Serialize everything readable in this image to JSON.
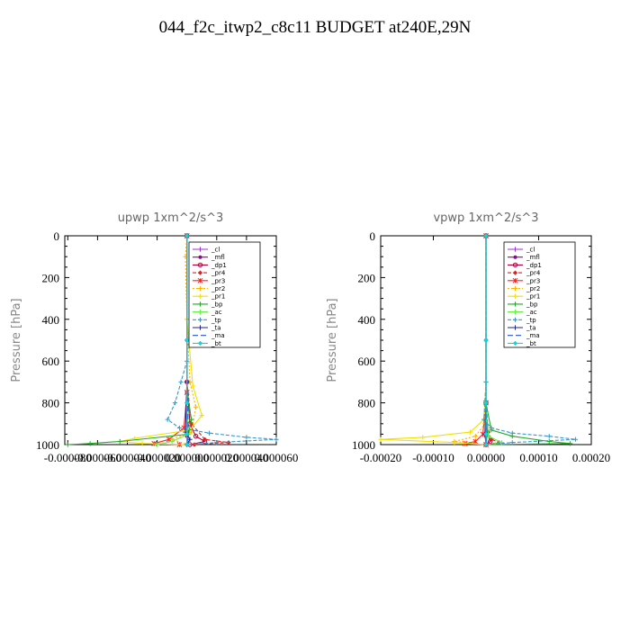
{
  "title": "044_f2c_itwp2_c8c11  BUDGET at240E,29N",
  "chart_data": [
    {
      "type": "line",
      "title": "upwp   1xm^2/s^3",
      "xlabel": "",
      "ylabel": "Pressure [hPa]",
      "xlim": [
        -8.2e-05,
        6e-05
      ],
      "ylim": [
        1000,
        0
      ],
      "y_reversed": true,
      "x_tick_labels": [
        "-0.000080",
        "-0.000060",
        "-0.000040",
        "-0.000020",
        "0.000000",
        "0.000020",
        "0.000040",
        "0.000060"
      ],
      "x_tick_values": [
        -8e-05,
        -6e-05,
        -4e-05,
        -2e-05,
        0,
        2e-05,
        4e-05,
        6e-05
      ],
      "y_tick_labels": [
        "0",
        "200",
        "400",
        "600",
        "800",
        "1000"
      ],
      "y_tick_values": [
        0,
        200,
        400,
        600,
        800,
        1000
      ],
      "legend_position": "top-right",
      "series": [
        {
          "name": "_cl",
          "color": "#9b30d0",
          "marker": "plus",
          "dash": "",
          "points": [
            [
              0,
              0
            ],
            [
              0,
              500
            ],
            [
              0,
              800
            ],
            [
              0,
              950
            ],
            [
              0,
              1000
            ]
          ]
        },
        {
          "name": "_mfl",
          "color": "#8b0a8b",
          "marker": "dot",
          "dash": "",
          "points": [
            [
              0,
              0
            ],
            [
              0,
              500
            ],
            [
              0,
              800
            ],
            [
              0,
              960
            ],
            [
              0,
              1000
            ]
          ]
        },
        {
          "name": "_dp1",
          "color": "#b0003a",
          "marker": "circle",
          "dash": "",
          "points": [
            [
              0,
              0
            ],
            [
              0,
              700
            ],
            [
              2e-06,
              900
            ],
            [
              6e-06,
              960
            ],
            [
              1.2e-05,
              985
            ],
            [
              2e-06,
              1000
            ]
          ]
        },
        {
          "name": "_pr4",
          "color": "#dd2222",
          "marker": "diamond",
          "dash": "4,2",
          "points": [
            [
              0,
              0
            ],
            [
              0,
              700
            ],
            [
              3e-06,
              900
            ],
            [
              1.2e-05,
              975
            ],
            [
              2.8e-05,
              990
            ],
            [
              5e-06,
              1000
            ]
          ]
        },
        {
          "name": "_pr3",
          "color": "#ff2222",
          "marker": "star",
          "dash": "",
          "points": [
            [
              0,
              0
            ],
            [
              0,
              750
            ],
            [
              -2e-06,
              920
            ],
            [
              -1.2e-05,
              975
            ],
            [
              -2.2e-05,
              995
            ],
            [
              -5e-06,
              1000
            ]
          ]
        },
        {
          "name": "_pr2",
          "color": "#ffb000",
          "marker": "plus",
          "dash": "2,2",
          "points": [
            [
              0,
              0
            ],
            [
              -1e-06,
              100
            ],
            [
              0,
              400
            ],
            [
              2e-06,
              700
            ],
            [
              6e-06,
              820
            ],
            [
              3e-06,
              940
            ],
            [
              -1e-05,
              975
            ],
            [
              0,
              1000
            ]
          ]
        },
        {
          "name": "_pr1",
          "color": "#f0e000",
          "marker": "plus",
          "dash": "",
          "points": [
            [
              0,
              0
            ],
            [
              0,
              400
            ],
            [
              4e-06,
              720
            ],
            [
              1e-05,
              860
            ],
            [
              2e-06,
              930
            ],
            [
              -3.5e-05,
              970
            ],
            [
              -4.5e-05,
              985
            ],
            [
              -3e-05,
              995
            ],
            [
              0,
              1000
            ]
          ]
        },
        {
          "name": "_bp",
          "color": "#22aa22",
          "marker": "plus",
          "dash": "",
          "points": [
            [
              0,
              0
            ],
            [
              0,
              750
            ],
            [
              3e-06,
              880
            ],
            [
              1e-06,
              950
            ],
            [
              -4.5e-05,
              985
            ],
            [
              -6.5e-05,
              995
            ],
            [
              -8e-05,
              1000
            ]
          ]
        },
        {
          "name": "_ac",
          "color": "#66ee44",
          "marker": "plus",
          "dash": "",
          "points": [
            [
              0,
              0
            ],
            [
              0,
              800
            ],
            [
              1e-06,
              950
            ],
            [
              -1e-05,
              985
            ],
            [
              -2e-05,
              1000
            ]
          ]
        },
        {
          "name": "_tp",
          "color": "#3399cc",
          "marker": "plus",
          "dash": "4,2",
          "points": [
            [
              0,
              0
            ],
            [
              0,
              600
            ],
            [
              -4e-06,
              700
            ],
            [
              -8e-06,
              800
            ],
            [
              -1.3e-05,
              880
            ],
            [
              -5e-06,
              920
            ],
            [
              1.5e-05,
              945
            ],
            [
              4e-05,
              965
            ],
            [
              6e-05,
              975
            ],
            [
              2e-05,
              990
            ],
            [
              0,
              1000
            ]
          ]
        },
        {
          "name": "_ta",
          "color": "#222288",
          "marker": "plus",
          "dash": "",
          "points": [
            [
              0,
              0
            ],
            [
              0,
              700
            ],
            [
              -1e-06,
              940
            ],
            [
              2e-06,
              975
            ],
            [
              0,
              1000
            ]
          ]
        },
        {
          "name": "_ma",
          "color": "#2255cc",
          "marker": "none",
          "dash": "6,3",
          "points": [
            [
              0,
              0
            ],
            [
              0,
              700
            ],
            [
              1e-06,
              950
            ],
            [
              0,
              1000
            ]
          ]
        },
        {
          "name": "_bt",
          "color": "#00dddd",
          "marker": "diamond",
          "dash": "",
          "points": [
            [
              0,
              0
            ],
            [
              0,
              500
            ],
            [
              0,
              800
            ],
            [
              0,
              950
            ],
            [
              0,
              1000
            ]
          ]
        }
      ]
    },
    {
      "type": "line",
      "title": "vpwp   1xm^2/s^3",
      "xlabel": "",
      "ylabel": "Pressure [hPa]",
      "xlim": [
        -0.0002,
        0.0002
      ],
      "ylim": [
        1000,
        0
      ],
      "y_reversed": true,
      "x_tick_labels": [
        "-0.00020",
        "-0.00010",
        "0.00000",
        "0.00010",
        "0.00020"
      ],
      "x_tick_values": [
        -0.0002,
        -0.0001,
        0,
        0.0001,
        0.0002
      ],
      "y_tick_labels": [
        "0",
        "200",
        "400",
        "600",
        "800",
        "1000"
      ],
      "y_tick_values": [
        0,
        200,
        400,
        600,
        800,
        1000
      ],
      "legend_position": "top-right",
      "series": [
        {
          "name": "_cl",
          "color": "#9b30d0",
          "marker": "plus",
          "dash": "",
          "points": [
            [
              0,
              0
            ],
            [
              0,
              500
            ],
            [
              0,
              800
            ],
            [
              0,
              950
            ],
            [
              0,
              1000
            ]
          ]
        },
        {
          "name": "_mfl",
          "color": "#8b0a8b",
          "marker": "dot",
          "dash": "",
          "points": [
            [
              0,
              0
            ],
            [
              0,
              500
            ],
            [
              0,
              800
            ],
            [
              0,
              960
            ],
            [
              0,
              1000
            ]
          ]
        },
        {
          "name": "_dp1",
          "color": "#b0003a",
          "marker": "circle",
          "dash": "",
          "points": [
            [
              0,
              0
            ],
            [
              0,
              800
            ],
            [
              2e-06,
              940
            ],
            [
              8e-06,
              985
            ],
            [
              0,
              1000
            ]
          ]
        },
        {
          "name": "_pr4",
          "color": "#dd2222",
          "marker": "diamond",
          "dash": "4,2",
          "points": [
            [
              0,
              0
            ],
            [
              0,
              800
            ],
            [
              4e-06,
              940
            ],
            [
              1e-05,
              975
            ],
            [
              2.5e-05,
              990
            ],
            [
              0,
              1000
            ]
          ]
        },
        {
          "name": "_pr3",
          "color": "#ff2222",
          "marker": "star",
          "dash": "",
          "points": [
            [
              0,
              0
            ],
            [
              0,
              800
            ],
            [
              -6e-06,
              950
            ],
            [
              -2e-05,
              985
            ],
            [
              -4e-05,
              995
            ],
            [
              0,
              1000
            ]
          ]
        },
        {
          "name": "_pr2",
          "color": "#ffb000",
          "marker": "plus",
          "dash": "2,2",
          "points": [
            [
              0,
              0
            ],
            [
              0,
              700
            ],
            [
              -2e-06,
              900
            ],
            [
              -2e-05,
              960
            ],
            [
              -6e-05,
              985
            ],
            [
              0,
              1000
            ]
          ]
        },
        {
          "name": "_pr1",
          "color": "#f0e000",
          "marker": "plus",
          "dash": "",
          "points": [
            [
              0,
              0
            ],
            [
              0,
              700
            ],
            [
              -4e-06,
              880
            ],
            [
              -3e-05,
              940
            ],
            [
              -0.00012,
              965
            ],
            [
              -0.0002,
              975
            ],
            [
              -6e-05,
              990
            ],
            [
              0,
              1000
            ]
          ]
        },
        {
          "name": "_bp",
          "color": "#22aa22",
          "marker": "plus",
          "dash": "",
          "points": [
            [
              0,
              0
            ],
            [
              0,
              800
            ],
            [
              1e-05,
              930
            ],
            [
              5e-05,
              960
            ],
            [
              0.00012,
              985
            ],
            [
              0.00016,
              995
            ],
            [
              0,
              1000
            ]
          ]
        },
        {
          "name": "_ac",
          "color": "#66ee44",
          "marker": "plus",
          "dash": "",
          "points": [
            [
              0,
              0
            ],
            [
              0,
              850
            ],
            [
              5e-06,
              960
            ],
            [
              3e-05,
              990
            ],
            [
              0,
              1000
            ]
          ]
        },
        {
          "name": "_tp",
          "color": "#3399cc",
          "marker": "plus",
          "dash": "4,2",
          "points": [
            [
              0,
              0
            ],
            [
              0,
              700
            ],
            [
              -4e-06,
              880
            ],
            [
              1e-05,
              920
            ],
            [
              5e-05,
              945
            ],
            [
              0.00012,
              960
            ],
            [
              0.00017,
              975
            ],
            [
              5e-05,
              990
            ],
            [
              0,
              1000
            ]
          ]
        },
        {
          "name": "_ta",
          "color": "#222288",
          "marker": "plus",
          "dash": "",
          "points": [
            [
              0,
              0
            ],
            [
              0,
              800
            ],
            [
              -2e-06,
              950
            ],
            [
              0,
              1000
            ]
          ]
        },
        {
          "name": "_ma",
          "color": "#2255cc",
          "marker": "none",
          "dash": "6,3",
          "points": [
            [
              0,
              0
            ],
            [
              0,
              800
            ],
            [
              2e-06,
              960
            ],
            [
              0,
              1000
            ]
          ]
        },
        {
          "name": "_bt",
          "color": "#00dddd",
          "marker": "diamond",
          "dash": "",
          "points": [
            [
              0,
              0
            ],
            [
              0,
              500
            ],
            [
              0,
              800
            ],
            [
              0,
              950
            ],
            [
              0,
              1000
            ]
          ]
        }
      ]
    }
  ]
}
